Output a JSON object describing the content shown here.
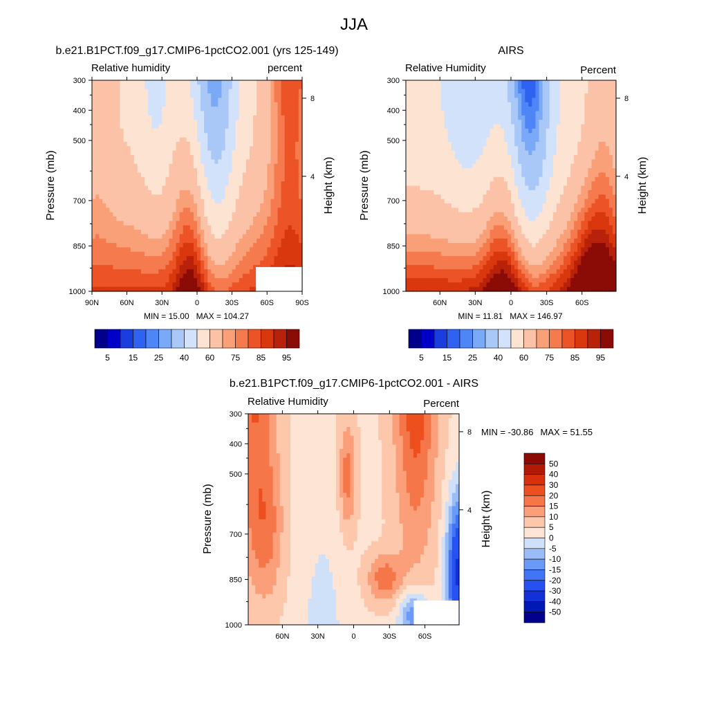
{
  "figure_title": "JJA",
  "colors": {
    "rh_levels": [
      "#00008b",
      "#0000c8",
      "#1a3de0",
      "#2f62f0",
      "#4f86f7",
      "#7aa9f7",
      "#a9c8f7",
      "#d2e2fa",
      "#fde3d2",
      "#fcc2a8",
      "#f9a078",
      "#f57a4e",
      "#ec5326",
      "#d9370e",
      "#b8220a",
      "#8b0b06"
    ],
    "diff_levels": [
      "#00008b",
      "#0018b5",
      "#1232d8",
      "#2650ef",
      "#4275f5",
      "#6a9af7",
      "#9bbcf7",
      "#cfe0f9",
      "#fde4d5",
      "#fcc7ab",
      "#fa9f79",
      "#f57648",
      "#ee4f1f",
      "#d9300c",
      "#b31a06",
      "#8b0a04"
    ]
  },
  "chart_data": [
    {
      "type": "heatmap",
      "title_left": "b.e21.B1PCT.f09_g17.CMIP6-1pctCO2.001 (yrs 125-149)",
      "title_right": "",
      "var_label": "Relative humidity",
      "units_label": "percent",
      "ylabel": "Pressure (mb)",
      "ylabel_right": "Height (km)",
      "pressure_ticks": [
        "300",
        "400",
        "500",
        "700",
        "850",
        "1000"
      ],
      "height_ticks": [
        "8",
        "4"
      ],
      "lat_ticks": [
        "90N",
        "60N",
        "30N",
        "0",
        "30S",
        "60S",
        "90S"
      ],
      "min_label": "MIN = ",
      "min_value": "15.00",
      "max_label": "MAX = ",
      "max_value": "104.27",
      "colorbar_labels": [
        "5",
        "15",
        "25",
        "40",
        "60",
        "75",
        "85",
        "95"
      ],
      "field": "model_rh"
    },
    {
      "type": "heatmap",
      "title_left": "",
      "title_right": "AIRS",
      "var_label": "Relative Humidity",
      "units_label": "Percent",
      "ylabel": "Pressure (mb)",
      "ylabel_right": "Height (km)",
      "pressure_ticks": [
        "300",
        "400",
        "500",
        "700",
        "850",
        "1000"
      ],
      "height_ticks": [
        "8",
        "4"
      ],
      "lat_ticks": [
        "60N",
        "30N",
        "0",
        "30S",
        "60S"
      ],
      "min_label": "MIN = ",
      "min_value": "11.81",
      "max_label": "MAX = ",
      "max_value": "146.97",
      "colorbar_labels": [
        "5",
        "15",
        "25",
        "40",
        "60",
        "75",
        "85",
        "95"
      ],
      "field": "airs_rh"
    },
    {
      "type": "heatmap",
      "title_left": "b.e21.B1PCT.f09_g17.CMIP6-1pctCO2.001 - AIRS",
      "var_label": "Relative Humidity",
      "units_label": "Percent",
      "ylabel": "Pressure (mb)",
      "ylabel_right": "Height (km)",
      "pressure_ticks": [
        "300",
        "400",
        "500",
        "700",
        "850",
        "1000"
      ],
      "height_ticks": [
        "8",
        "4"
      ],
      "lat_ticks": [
        "60N",
        "30N",
        "0",
        "30S",
        "60S"
      ],
      "min_label": "MIN = ",
      "min_value": "-30.86",
      "max_label": "MAX = ",
      "max_value": "51.55",
      "colorbar_labels": [
        "50",
        "40",
        "30",
        "20",
        "15",
        "10",
        "5",
        "0",
        "-5",
        "-10",
        "-15",
        "-20",
        "-30",
        "-40",
        "-50"
      ],
      "field": "diff"
    }
  ]
}
